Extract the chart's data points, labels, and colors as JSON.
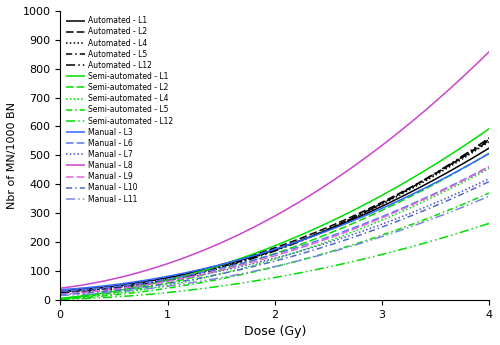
{
  "title": "",
  "xlabel": "Dose (Gy)",
  "ylabel": "Nbr of MN/1000 BN",
  "xlim": [
    0,
    4
  ],
  "ylim": [
    0,
    1000
  ],
  "xticks": [
    0,
    1,
    2,
    3,
    4
  ],
  "yticks": [
    0,
    100,
    200,
    300,
    400,
    500,
    600,
    700,
    800,
    900,
    1000
  ],
  "curves": [
    {
      "label": "Automated - L1",
      "color": "#000000",
      "linestyle": "solid",
      "c0": 30,
      "c1": 20,
      "c2": 26
    },
    {
      "label": "Automated - L2",
      "color": "#000000",
      "linestyle": "dashed",
      "c0": 32,
      "c1": 18,
      "c2": 28
    },
    {
      "label": "Automated - L4",
      "color": "#000000",
      "linestyle": "dotted",
      "c0": 28,
      "c1": 14,
      "c2": 29
    },
    {
      "label": "Automated - L5",
      "color": "#000000",
      "linestyle": "dashdot",
      "c0": 28,
      "c1": 12,
      "c2": 30
    },
    {
      "label": "Automated - L12",
      "color": "#000000",
      "linestyle": "loosedash",
      "c0": 25,
      "c1": 10,
      "c2": 31
    },
    {
      "label": "Semi-automated - L1",
      "color": "#00dd00",
      "linestyle": "solid",
      "c0": 5,
      "c1": 35,
      "c2": 28
    },
    {
      "label": "Semi-automated - L2",
      "color": "#00dd00",
      "linestyle": "dashed",
      "c0": 4,
      "c1": 30,
      "c2": 24
    },
    {
      "label": "Semi-automated - L4",
      "color": "#00dd00",
      "linestyle": "dotted",
      "c0": 3,
      "c1": 25,
      "c2": 22
    },
    {
      "label": "Semi-automated - L5",
      "color": "#00dd00",
      "linestyle": "dashdot",
      "c0": 2,
      "c1": 20,
      "c2": 18
    },
    {
      "label": "Semi-automated - L12",
      "color": "#00dd00",
      "linestyle": "loosedash",
      "c0": 1,
      "c1": 10,
      "c2": 14
    },
    {
      "label": "Manual - L3",
      "color": "#3366ff",
      "linestyle": "solid",
      "c0": 35,
      "c1": 22,
      "c2": 24
    },
    {
      "label": "Manual - L6",
      "color": "#5577ee",
      "linestyle": "dashed",
      "c0": 30,
      "c1": 20,
      "c2": 22
    },
    {
      "label": "Manual - L7",
      "color": "#4455cc",
      "linestyle": "dotted",
      "c0": 28,
      "c1": 18,
      "c2": 20
    },
    {
      "label": "Manual - L8",
      "color": "#cc44cc",
      "linestyle": "solid",
      "c0": 40,
      "c1": 45,
      "c2": 40
    },
    {
      "label": "Manual - L9",
      "color": "#dd66dd",
      "linestyle": "dashed",
      "c0": 20,
      "c1": 22,
      "c2": 22
    },
    {
      "label": "Manual - L10",
      "color": "#5566cc",
      "linestyle": "dashdot",
      "c0": 18,
      "c1": 18,
      "c2": 20
    },
    {
      "label": "Manual - L11",
      "color": "#7788dd",
      "linestyle": "loosedash",
      "c0": 15,
      "c1": 14,
      "c2": 18
    }
  ],
  "figsize": [
    5.0,
    3.45
  ],
  "dpi": 100,
  "lw": 1.1,
  "legend_fontsize": 5.5
}
